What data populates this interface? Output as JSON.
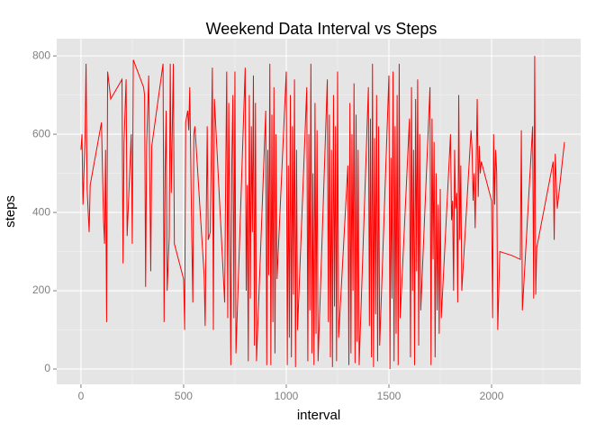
{
  "chart_data": {
    "type": "line",
    "title": "Weekend Data Interval vs Steps",
    "x_label": "interval",
    "y_label": "steps",
    "x": [
      0,
      5,
      10,
      20,
      25,
      30,
      40,
      45,
      100,
      110,
      115,
      120,
      125,
      130,
      145,
      200,
      205,
      210,
      220,
      225,
      235,
      245,
      250,
      255,
      305,
      310,
      315,
      320,
      330,
      340,
      345,
      400,
      405,
      410,
      415,
      420,
      430,
      435,
      440,
      450,
      455,
      500,
      505,
      510,
      520,
      525,
      530,
      540,
      545,
      550,
      555,
      600,
      605,
      615,
      620,
      630,
      640,
      645,
      650,
      700,
      705,
      710,
      715,
      720,
      725,
      730,
      735,
      740,
      745,
      750,
      755,
      800,
      805,
      810,
      815,
      820,
      825,
      830,
      835,
      840,
      845,
      850,
      855,
      900,
      905,
      910,
      915,
      920,
      925,
      930,
      935,
      940,
      945,
      950,
      955,
      1000,
      1005,
      1010,
      1015,
      1020,
      1025,
      1030,
      1035,
      1040,
      1045,
      1050,
      1055,
      1100,
      1105,
      1110,
      1115,
      1120,
      1125,
      1130,
      1135,
      1140,
      1145,
      1150,
      1155,
      1200,
      1205,
      1210,
      1215,
      1220,
      1225,
      1230,
      1235,
      1240,
      1245,
      1250,
      1255,
      1300,
      1305,
      1310,
      1315,
      1320,
      1325,
      1330,
      1335,
      1340,
      1345,
      1350,
      1355,
      1400,
      1405,
      1410,
      1415,
      1420,
      1425,
      1430,
      1435,
      1440,
      1445,
      1450,
      1455,
      1500,
      1505,
      1510,
      1515,
      1520,
      1525,
      1530,
      1535,
      1540,
      1545,
      1550,
      1555,
      1600,
      1605,
      1610,
      1615,
      1620,
      1625,
      1630,
      1635,
      1640,
      1645,
      1650,
      1655,
      1700,
      1705,
      1710,
      1715,
      1720,
      1725,
      1730,
      1735,
      1740,
      1745,
      1750,
      1755,
      1800,
      1805,
      1810,
      1815,
      1820,
      1825,
      1830,
      1835,
      1840,
      1845,
      1850,
      1855,
      1900,
      1905,
      1910,
      1915,
      1920,
      1930,
      1935,
      1940,
      1945,
      1950,
      2000,
      2005,
      2010,
      2015,
      2020,
      2025,
      2030,
      2040,
      2100,
      2140,
      2145,
      2150,
      2200,
      2205,
      2210,
      2215,
      2220,
      2300,
      2305,
      2310,
      2320,
      2355
    ],
    "values": [
      560,
      600,
      420,
      590,
      780,
      460,
      350,
      470,
      630,
      380,
      320,
      560,
      120,
      760,
      690,
      740,
      270,
      580,
      740,
      340,
      470,
      600,
      320,
      790,
      720,
      700,
      210,
      570,
      750,
      250,
      570,
      780,
      120,
      500,
      660,
      200,
      340,
      780,
      450,
      780,
      320,
      230,
      100,
      630,
      660,
      610,
      720,
      330,
      170,
      600,
      620,
      240,
      110,
      620,
      330,
      350,
      770,
      100,
      690,
      170,
      490,
      760,
      130,
      680,
      350,
      10,
      530,
      700,
      130,
      760,
      40,
      770,
      200,
      470,
      20,
      700,
      180,
      620,
      350,
      750,
      60,
      680,
      20,
      660,
      10,
      560,
      240,
      780,
      10,
      650,
      120,
      720,
      40,
      600,
      230,
      760,
      10,
      520,
      80,
      700,
      30,
      620,
      190,
      740,
      5,
      560,
      100,
      720,
      20,
      600,
      150,
      780,
      40,
      500,
      10,
      680,
      90,
      610,
      20,
      740,
      120,
      650,
      30,
      560,
      5,
      700,
      160,
      620,
      20,
      760,
      80,
      520,
      10,
      680,
      40,
      600,
      200,
      730,
      15,
      650,
      70,
      560,
      10,
      720,
      110,
      640,
      30,
      780,
      5,
      590,
      140,
      700,
      20,
      620,
      60,
      750,
      0,
      540,
      180,
      760,
      20,
      620,
      90,
      700,
      10,
      780,
      130,
      640,
      30,
      720,
      200,
      560,
      10,
      690,
      250,
      740,
      60,
      600,
      150,
      720,
      10,
      640,
      280,
      580,
      30,
      500,
      150,
      420,
      90,
      460,
      130,
      600,
      380,
      430,
      200,
      560,
      410,
      450,
      170,
      700,
      330,
      520,
      200,
      610,
      560,
      430,
      500,
      360,
      690,
      440,
      570,
      500,
      530,
      430,
      130,
      600,
      420,
      560,
      500,
      100,
      300,
      290,
      280,
      610,
      150,
      620,
      180,
      800,
      190,
      310,
      530,
      330,
      550,
      410,
      580
    ],
    "color": "#ff0000",
    "xlim": [
      -118,
      2434
    ],
    "ylim": [
      -39,
      844
    ],
    "xticks": [
      0,
      500,
      1000,
      1500,
      2000
    ],
    "yticks": [
      0,
      200,
      400,
      600,
      800
    ],
    "grid": true,
    "minor_grid": true
  }
}
